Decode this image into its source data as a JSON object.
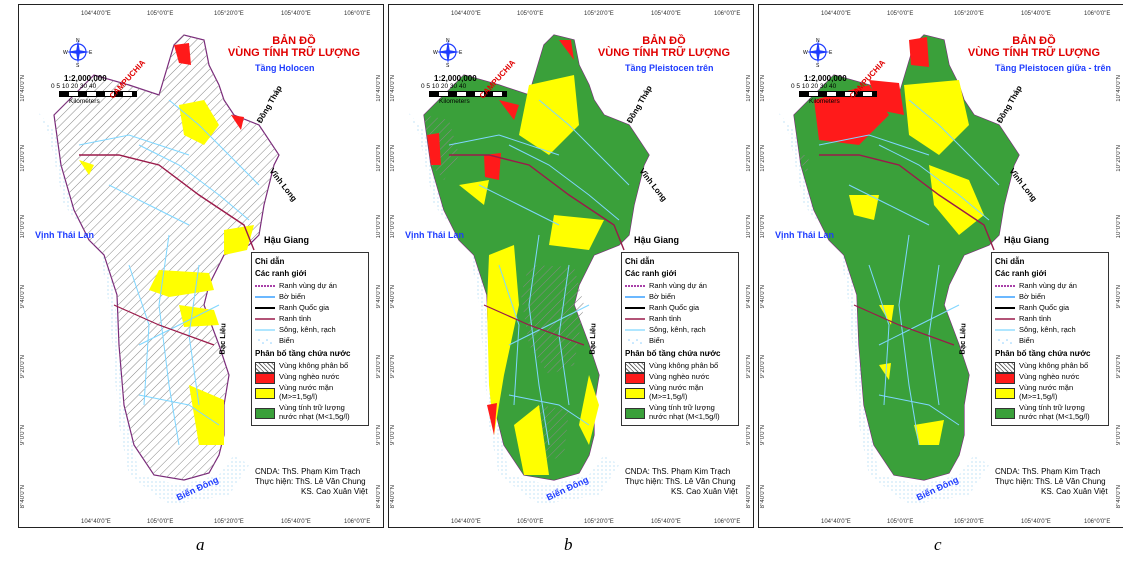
{
  "maps": [
    {
      "id": "a",
      "title": "BẢN ĐỒ\nVÙNG TÍNH TRỮ LƯỢNG",
      "subtitle": "Tầng Holocen",
      "caption": "a"
    },
    {
      "id": "b",
      "title": "BẢN ĐỒ\nVÙNG TÍNH TRỮ LƯỢNG",
      "subtitle": "Tầng Pleistocen trên",
      "caption": "b"
    },
    {
      "id": "c",
      "title": "BẢN ĐỒ\nVÙNG TÍNH TRỮ LƯỢNG",
      "subtitle": "Tầng Pleistocen giữa - trên",
      "caption": "c"
    }
  ],
  "common": {
    "scale": "1:2,000,000",
    "scale_numbers": "0 5 10    20    30    40",
    "scale_unit": "Kilometers",
    "compass": {
      "n": "N",
      "s": "S",
      "e": "E",
      "w": "W"
    },
    "places": {
      "campuchia": "CAMPUCHIA",
      "dong_thap": "Đồng Tháp",
      "vinh_long": "Vĩnh Long",
      "hau_giang": "Hậu Giang",
      "vinh_thai_lan": "Vịnh Thái Lan",
      "bac_lieu": "Bạc Liêu",
      "bien_dong": "Biển Đông"
    },
    "graticule": {
      "top": [
        "104°40'0\"E",
        "105°0'0\"E",
        "105°20'0\"E",
        "105°40'0\"E",
        "106°0'0\"E"
      ],
      "side": [
        "10°40'0\"N",
        "10°20'0\"N",
        "10°0'0\"N",
        "9°40'0\"N",
        "9°20'0\"N",
        "9°0'0\"N",
        "8°40'0\"N"
      ]
    },
    "legend": {
      "title": "Chỉ dẫn",
      "boundaries_title": "Các ranh giới",
      "boundaries": [
        "Ranh vùng dự án",
        "Bờ biển",
        "Ranh Quốc gia",
        "Ranh tỉnh",
        "Sông, kênh, rạch",
        "Biển"
      ],
      "aquifer_title": "Phân bố tầng chứa nước",
      "aquifer": [
        "Vùng không phân bố",
        "Vùng nghèo nước",
        "Vùng nước mặn\n(M>=1,5g/l)",
        "Vùng tính trữ lượng\nnước nhạt (M<1,5g/l)"
      ]
    },
    "credits": {
      "cnda": "CNDA: ThS. Phạm Kim Trạch",
      "thuc_hien": "Thực hiện: ThS. Lê Văn Chung",
      "ks": "KS. Cao Xuân Việt"
    }
  },
  "colors": {
    "title_red": "#e00000",
    "subtitle_blue": "#1e3cff",
    "fresh_green": "#3aa03a",
    "saline_yellow": "#ffff00",
    "poor_red": "#ff1a1a",
    "river_cyan": "#7fd6ff",
    "sea_blue": "#8ccfff",
    "project_boundary": "#8b008b",
    "province_boundary": "#9a1a4a"
  }
}
